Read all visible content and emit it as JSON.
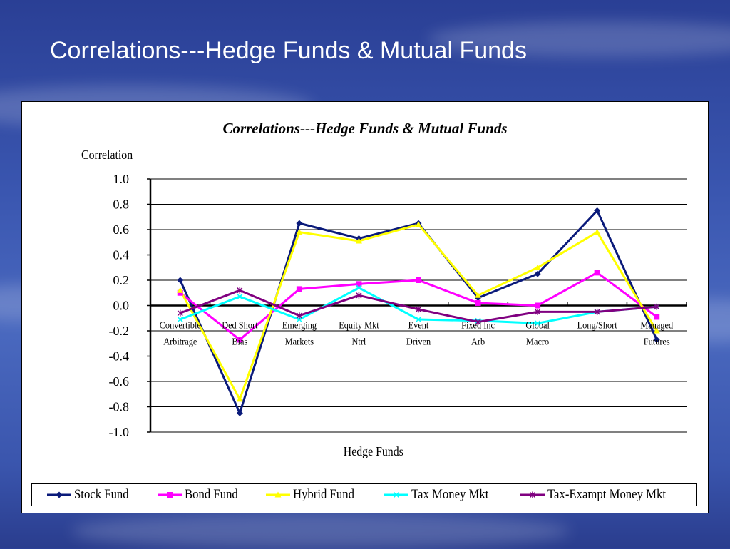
{
  "slide": {
    "title": "Correlations---Hedge Funds & Mutual Funds"
  },
  "chart_data": {
    "type": "line",
    "title": "Correlations---Hedge Funds & Mutual Funds",
    "xlabel": "Hedge Funds",
    "ylabel": "Correlation",
    "ylim": [
      -1.0,
      1.0
    ],
    "yticks": [
      "1.0",
      "0.8",
      "0.6",
      "0.4",
      "0.2",
      "0.0",
      "-0.2",
      "-0.4",
      "-0.6",
      "-0.8",
      "-1.0"
    ],
    "grid": true,
    "legend_position": "bottom",
    "categories": [
      [
        "Convertible",
        "Arbitrage"
      ],
      [
        "Ded Short",
        "Bias"
      ],
      [
        "Emerging",
        "Markets"
      ],
      [
        "Equity Mkt",
        "Ntrl"
      ],
      [
        "Event",
        "Driven"
      ],
      [
        "Fixed Inc",
        "Arb"
      ],
      [
        "Global",
        "Macro"
      ],
      [
        "Long/Short",
        ""
      ],
      [
        "Managed",
        "Futures"
      ]
    ],
    "series": [
      {
        "name": "Stock Fund",
        "color": "#0a1a7a",
        "marker": "diamond",
        "values": [
          0.2,
          -0.85,
          0.65,
          0.53,
          0.65,
          0.06,
          0.25,
          0.75,
          -0.27
        ]
      },
      {
        "name": "Bond Fund",
        "color": "#ff00ff",
        "marker": "square",
        "values": [
          0.1,
          -0.27,
          0.13,
          0.17,
          0.2,
          0.02,
          0.0,
          0.26,
          -0.09
        ]
      },
      {
        "name": "Hybrid Fund",
        "color": "#ffff00",
        "marker": "triangle",
        "values": [
          0.12,
          -0.74,
          0.58,
          0.51,
          0.64,
          0.08,
          0.3,
          0.58,
          -0.2
        ]
      },
      {
        "name": "Tax Money Mkt",
        "color": "#00ffff",
        "marker": "x",
        "values": [
          -0.11,
          0.07,
          -0.11,
          0.14,
          -0.11,
          -0.12,
          -0.14,
          -0.05,
          -0.01
        ]
      },
      {
        "name": "Tax-Exampt Money Mkt",
        "color": "#800080",
        "marker": "star",
        "values": [
          -0.06,
          0.12,
          -0.08,
          0.08,
          -0.03,
          -0.13,
          -0.05,
          -0.05,
          -0.01
        ]
      }
    ]
  }
}
